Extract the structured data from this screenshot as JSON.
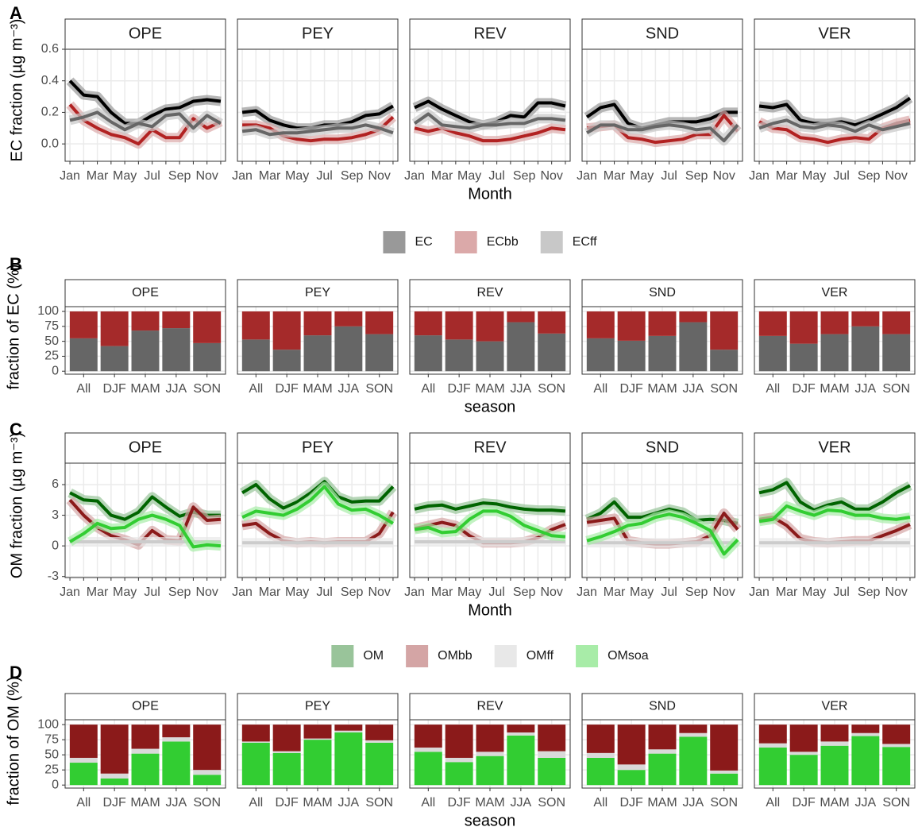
{
  "chart_data": [
    {
      "type": "line",
      "panel_label": "A",
      "xlabel": "Month",
      "ylabel": "EC fraction (µg m⁻³)",
      "categories": [
        "Jan",
        null,
        "Mar",
        null,
        "May",
        null,
        "Jul",
        null,
        "Sep",
        null,
        "Nov",
        null
      ],
      "ylim": [
        -0.11,
        0.6
      ],
      "yticks": [
        {
          "value": 0,
          "label": "0.0"
        },
        0.2,
        0.4,
        0.6
      ],
      "grid": true,
      "legend": "bottom",
      "series": [
        {
          "name": "EC",
          "color": "#000000",
          "fill": "#999999"
        },
        {
          "name": "ECbb",
          "color": "#b22222",
          "fill": "#dba9a9"
        },
        {
          "name": "ECff",
          "color": "#666666",
          "fill": "#c8c8c8"
        }
      ],
      "facets": [
        {
          "name": "OPE",
          "values": [
            [
              0.4,
              0.31,
              0.3,
              0.2,
              0.13,
              0.13,
              0.18,
              0.22,
              0.23,
              0.27,
              0.28,
              0.27
            ],
            [
              0.25,
              0.15,
              0.1,
              0.06,
              0.04,
              0.0,
              0.09,
              0.04,
              0.04,
              0.16,
              0.1,
              0.14
            ],
            [
              0.15,
              0.17,
              0.2,
              0.14,
              0.09,
              0.13,
              0.11,
              0.18,
              0.19,
              0.1,
              0.18,
              0.13
            ]
          ]
        },
        {
          "name": "PEY",
          "values": [
            [
              0.2,
              0.21,
              0.15,
              0.12,
              0.1,
              0.1,
              0.12,
              0.12,
              0.14,
              0.18,
              0.19,
              0.24
            ],
            [
              0.12,
              0.12,
              0.1,
              0.05,
              0.03,
              0.02,
              0.03,
              0.03,
              0.04,
              0.06,
              0.09,
              0.17
            ],
            [
              0.08,
              0.09,
              0.06,
              0.07,
              0.07,
              0.08,
              0.09,
              0.1,
              0.1,
              0.12,
              0.1,
              0.07
            ]
          ]
        },
        {
          "name": "REV",
          "values": [
            [
              0.23,
              0.27,
              0.22,
              0.18,
              0.14,
              0.12,
              0.14,
              0.18,
              0.17,
              0.26,
              0.26,
              0.24
            ],
            [
              0.1,
              0.08,
              0.1,
              0.07,
              0.05,
              0.02,
              0.02,
              0.03,
              0.05,
              0.07,
              0.1,
              0.09
            ],
            [
              0.13,
              0.19,
              0.12,
              0.11,
              0.1,
              0.12,
              0.12,
              0.13,
              0.13,
              0.16,
              0.16,
              0.15
            ]
          ]
        },
        {
          "name": "SND",
          "values": [
            [
              0.17,
              0.23,
              0.25,
              0.13,
              0.1,
              0.12,
              0.14,
              0.14,
              0.14,
              0.16,
              0.2,
              0.2
            ],
            [
              0.1,
              0.11,
              0.12,
              0.04,
              0.03,
              0.01,
              0.02,
              0.03,
              0.06,
              0.06,
              0.18,
              0.08
            ],
            [
              0.07,
              0.12,
              0.12,
              0.09,
              0.09,
              0.11,
              0.12,
              0.11,
              0.09,
              0.1,
              0.02,
              0.12
            ]
          ]
        },
        {
          "name": "VER",
          "values": [
            [
              0.24,
              0.23,
              0.25,
              0.15,
              0.13,
              0.13,
              0.14,
              0.12,
              0.15,
              0.19,
              0.23,
              0.29
            ],
            [
              0.14,
              0.1,
              0.09,
              0.04,
              0.03,
              0.01,
              0.03,
              0.04,
              0.03,
              0.1,
              0.13,
              0.15
            ],
            [
              0.1,
              0.13,
              0.15,
              0.11,
              0.1,
              0.12,
              0.11,
              0.08,
              0.12,
              0.09,
              0.11,
              0.13
            ]
          ]
        }
      ]
    },
    {
      "type": "bar",
      "panel_label": "B",
      "xlabel": "season",
      "ylabel": "fraction of EC (%)",
      "categories": [
        "All",
        "DJF",
        "MAM",
        "JJA",
        "SON"
      ],
      "ylim": [
        -5,
        108
      ],
      "yticks": [
        0,
        25,
        50,
        75,
        100
      ],
      "grid": true,
      "series": [
        {
          "color": "#666666"
        },
        {
          "color": "#a52a2a"
        }
      ],
      "facets": [
        {
          "name": "OPE",
          "values": [
            [
              55,
              42,
              68,
              72,
              47
            ],
            [
              45,
              58,
              32,
              28,
              53
            ]
          ]
        },
        {
          "name": "PEY",
          "values": [
            [
              53,
              36,
              60,
              75,
              62
            ],
            [
              47,
              64,
              40,
              25,
              38
            ]
          ]
        },
        {
          "name": "REV",
          "values": [
            [
              60,
              53,
              50,
              82,
              63
            ],
            [
              40,
              47,
              50,
              18,
              37
            ]
          ]
        },
        {
          "name": "SND",
          "values": [
            [
              55,
              51,
              59,
              82,
              36
            ],
            [
              45,
              49,
              41,
              18,
              64
            ]
          ]
        },
        {
          "name": "VER",
          "values": [
            [
              59,
              46,
              62,
              75,
              62
            ],
            [
              41,
              54,
              38,
              25,
              38
            ]
          ]
        }
      ]
    },
    {
      "type": "line",
      "panel_label": "C",
      "xlabel": "Month",
      "ylabel": "OM fraction (µg m⁻³)",
      "categories": [
        "Jan",
        null,
        "Mar",
        null,
        "May",
        null,
        "Jul",
        null,
        "Sep",
        null,
        "Nov",
        null
      ],
      "ylim": [
        -3.1,
        8.1
      ],
      "yticks": [
        -3,
        0,
        3,
        6
      ],
      "grid": true,
      "legend": "bottom",
      "series": [
        {
          "name": "OM",
          "color": "#006400",
          "fill": "#99c49a"
        },
        {
          "name": "OMbb",
          "color": "#8b1a1a",
          "fill": "#d4a5a5"
        },
        {
          "name": "OMff",
          "color": "#cccccc",
          "fill": "#e8e8e8"
        },
        {
          "name": "OMsoa",
          "color": "#32cd32",
          "fill": "#a8eca8"
        }
      ],
      "facets": [
        {
          "name": "OPE",
          "values": [
            [
              5.2,
              4.5,
              4.4,
              3.0,
              2.6,
              3.3,
              4.8,
              3.8,
              2.9,
              3.3,
              3.0,
              3.0
            ],
            [
              4.5,
              3.0,
              1.8,
              1.0,
              0.6,
              0.1,
              1.5,
              0.6,
              0.5,
              3.8,
              2.5,
              2.6
            ],
            [
              0.4,
              0.4,
              0.4,
              0.4,
              0.4,
              0.4,
              0.4,
              0.4,
              0.4,
              0.4,
              0.4,
              0.4
            ],
            [
              0.4,
              1.2,
              2.2,
              1.7,
              1.8,
              2.6,
              3.0,
              2.6,
              2.0,
              -0.1,
              0.1,
              0.0
            ]
          ]
        },
        {
          "name": "PEY",
          "values": [
            [
              5.2,
              6.0,
              4.6,
              3.7,
              4.3,
              5.2,
              6.3,
              4.8,
              4.3,
              4.4,
              4.4,
              5.8
            ],
            [
              2.0,
              2.2,
              1.2,
              0.5,
              0.3,
              0.4,
              0.3,
              0.4,
              0.4,
              0.4,
              1.2,
              3.3
            ],
            [
              0.3,
              0.3,
              0.3,
              0.3,
              0.3,
              0.3,
              0.3,
              0.3,
              0.3,
              0.3,
              0.3,
              0.3
            ],
            [
              2.8,
              3.4,
              3.2,
              3.0,
              3.6,
              4.5,
              5.8,
              4.1,
              3.5,
              3.6,
              3.0,
              2.2
            ]
          ]
        },
        {
          "name": "REV",
          "values": [
            [
              3.6,
              3.9,
              4.0,
              3.6,
              3.9,
              4.2,
              4.1,
              3.8,
              3.6,
              3.5,
              3.5,
              3.4
            ],
            [
              1.7,
              2.0,
              2.3,
              2.0,
              1.0,
              0.3,
              0.3,
              0.3,
              0.4,
              0.8,
              1.6,
              2.1
            ],
            [
              0.4,
              0.4,
              0.4,
              0.4,
              0.4,
              0.4,
              0.4,
              0.4,
              0.4,
              0.4,
              0.4,
              0.4
            ],
            [
              1.6,
              1.8,
              1.3,
              1.4,
              2.6,
              3.4,
              3.4,
              2.9,
              2.0,
              1.5,
              1.0,
              0.9
            ]
          ]
        },
        {
          "name": "SND",
          "values": [
            [
              2.6,
              3.2,
              4.3,
              2.8,
              2.8,
              3.2,
              3.6,
              3.3,
              2.5,
              2.6,
              2.5,
              2.2
            ],
            [
              2.3,
              2.5,
              2.7,
              0.5,
              0.3,
              0.2,
              0.2,
              0.3,
              0.4,
              1.0,
              3.2,
              1.6
            ],
            [
              0.3,
              0.3,
              0.3,
              0.3,
              0.3,
              0.3,
              0.3,
              0.3,
              0.3,
              0.3,
              0.3,
              0.3
            ],
            [
              0.5,
              0.9,
              1.4,
              2.0,
              2.2,
              2.8,
              3.1,
              2.8,
              2.2,
              1.5,
              -0.8,
              0.6
            ]
          ]
        },
        {
          "name": "VER",
          "values": [
            [
              5.2,
              5.5,
              6.2,
              4.3,
              3.5,
              4.0,
              4.3,
              3.6,
              3.6,
              4.3,
              5.2,
              5.9
            ],
            [
              2.6,
              2.8,
              2.0,
              0.7,
              0.4,
              0.3,
              0.4,
              0.5,
              0.5,
              1.0,
              1.5,
              2.1
            ],
            [
              0.3,
              0.3,
              0.3,
              0.3,
              0.3,
              0.3,
              0.3,
              0.3,
              0.3,
              0.3,
              0.3,
              0.3
            ],
            [
              2.4,
              2.6,
              3.9,
              3.4,
              3.0,
              3.5,
              3.4,
              3.0,
              3.0,
              2.7,
              2.6,
              2.8
            ]
          ]
        }
      ]
    },
    {
      "type": "bar",
      "panel_label": "D",
      "xlabel": "season",
      "ylabel": "fraction of OM (%)",
      "categories": [
        "All",
        "DJF",
        "MAM",
        "JJA",
        "SON"
      ],
      "ylim": [
        -5,
        108
      ],
      "yticks": [
        0,
        25,
        50,
        75,
        100
      ],
      "grid": true,
      "series": [
        {
          "color": "#32cd32"
        },
        {
          "color": "#d9d9d9"
        },
        {
          "color": "#8b1a1a"
        }
      ],
      "facets": [
        {
          "name": "OPE",
          "values": [
            [
              37,
              11,
              52,
              72,
              17
            ],
            [
              8,
              8,
              8,
              7,
              8
            ],
            [
              55,
              81,
              40,
              21,
              75
            ]
          ]
        },
        {
          "name": "PEY",
          "values": [
            [
              70,
              53,
              75,
              87,
              70
            ],
            [
              2,
              3,
              2,
              3,
              4
            ],
            [
              28,
              44,
              23,
              10,
              26
            ]
          ]
        },
        {
          "name": "REV",
          "values": [
            [
              55,
              38,
              48,
              82,
              45
            ],
            [
              7,
              7,
              7,
              5,
              11
            ],
            [
              38,
              55,
              45,
              13,
              44
            ]
          ]
        },
        {
          "name": "SND",
          "values": [
            [
              45,
              25,
              52,
              80,
              19
            ],
            [
              8,
              9,
              7,
              6,
              5
            ],
            [
              47,
              66,
              41,
              14,
              76
            ]
          ]
        },
        {
          "name": "VER",
          "values": [
            [
              62,
              50,
              65,
              81,
              63
            ],
            [
              7,
              5,
              7,
              5,
              5
            ],
            [
              31,
              45,
              28,
              14,
              32
            ]
          ]
        }
      ]
    }
  ]
}
